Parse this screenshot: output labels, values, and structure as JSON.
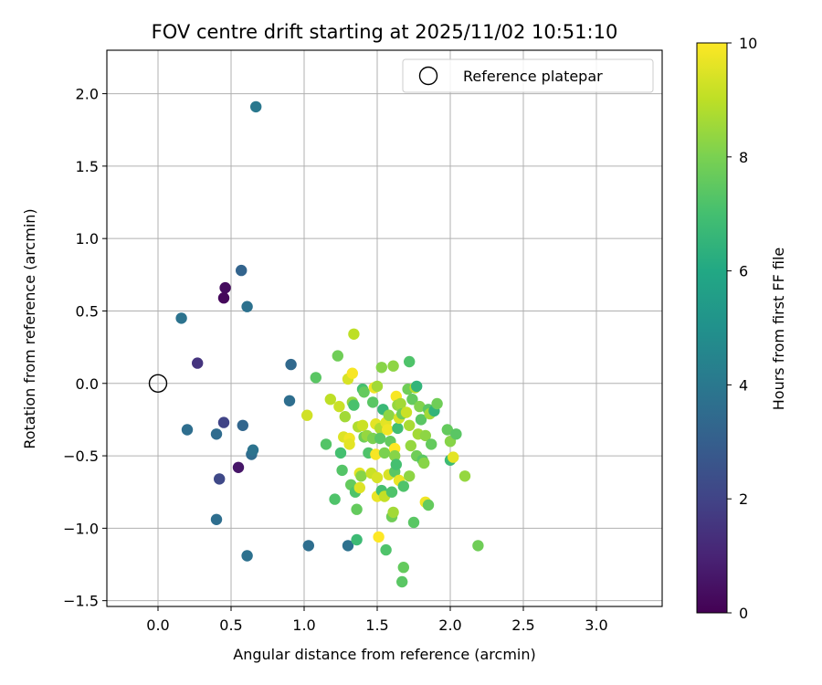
{
  "chart_data": {
    "type": "scatter",
    "title": "FOV centre drift starting at 2025/11/02 10:51:10",
    "xlabel": "Angular distance from reference (arcmin)",
    "ylabel": "Rotation from reference (arcmin)",
    "xlim": [
      -0.35,
      3.45
    ],
    "ylim": [
      -1.54,
      2.3
    ],
    "xticks": [
      0.0,
      0.5,
      1.0,
      1.5,
      2.0,
      2.5,
      3.0
    ],
    "xtick_labels": [
      "0.0",
      "0.5",
      "1.0",
      "1.5",
      "2.0",
      "2.5",
      "3.0"
    ],
    "yticks": [
      -1.5,
      -1.0,
      -0.5,
      0.0,
      0.5,
      1.0,
      1.5,
      2.0
    ],
    "ytick_labels": [
      "−1.5",
      "−1.0",
      "−0.5",
      "0.0",
      "0.5",
      "1.0",
      "1.5",
      "2.0"
    ],
    "grid": true,
    "legend": {
      "position": "top-right",
      "entries": [
        "Reference platepar"
      ]
    },
    "reference_point": {
      "x": 0.0,
      "y": 0.0
    },
    "colorbar": {
      "label": "Hours from first FF file",
      "colormap": "viridis",
      "range": [
        0,
        10
      ],
      "ticks": [
        0,
        2,
        4,
        6,
        8,
        10
      ],
      "tick_labels": [
        "0",
        "2",
        "4",
        "6",
        "8",
        "10"
      ]
    },
    "series": [
      {
        "name": "FOV centre drift",
        "points": [
          {
            "x": 0.46,
            "y": 0.66,
            "h": 0.3
          },
          {
            "x": 0.45,
            "y": 0.59,
            "h": 0.2
          },
          {
            "x": 0.55,
            "y": -0.58,
            "h": 0.6
          },
          {
            "x": 0.27,
            "y": 0.14,
            "h": 1.5
          },
          {
            "x": 0.45,
            "y": -0.27,
            "h": 2.0
          },
          {
            "x": 0.42,
            "y": -0.66,
            "h": 2.2
          },
          {
            "x": 0.16,
            "y": 0.45,
            "h": 3.8
          },
          {
            "x": 0.4,
            "y": -0.35,
            "h": 3.5
          },
          {
            "x": 0.2,
            "y": -0.32,
            "h": 3.6
          },
          {
            "x": 0.57,
            "y": 0.78,
            "h": 3.2
          },
          {
            "x": 0.61,
            "y": 0.53,
            "h": 3.7
          },
          {
            "x": 0.58,
            "y": -0.29,
            "h": 3.3
          },
          {
            "x": 0.64,
            "y": -0.49,
            "h": 3.5
          },
          {
            "x": 0.65,
            "y": -0.46,
            "h": 3.8
          },
          {
            "x": 0.4,
            "y": -0.94,
            "h": 3.6
          },
          {
            "x": 0.61,
            "y": -1.19,
            "h": 3.7
          },
          {
            "x": 0.67,
            "y": 1.91,
            "h": 4.0
          },
          {
            "x": 0.91,
            "y": 0.13,
            "h": 3.4
          },
          {
            "x": 0.9,
            "y": -0.12,
            "h": 3.6
          },
          {
            "x": 1.03,
            "y": -1.12,
            "h": 3.6
          },
          {
            "x": 1.3,
            "y": -1.12,
            "h": 3.7
          },
          {
            "x": 1.08,
            "y": 0.04,
            "h": 7.4
          },
          {
            "x": 1.02,
            "y": -0.22,
            "h": 9.3
          },
          {
            "x": 1.15,
            "y": -0.42,
            "h": 7.3
          },
          {
            "x": 1.18,
            "y": -0.11,
            "h": 9.0
          },
          {
            "x": 1.21,
            "y": -0.8,
            "h": 7.2
          },
          {
            "x": 1.23,
            "y": 0.19,
            "h": 7.8
          },
          {
            "x": 1.24,
            "y": -0.16,
            "h": 9.2
          },
          {
            "x": 1.25,
            "y": -0.48,
            "h": 7.0
          },
          {
            "x": 1.26,
            "y": -0.6,
            "h": 7.3
          },
          {
            "x": 1.27,
            "y": -0.37,
            "h": 9.5
          },
          {
            "x": 1.28,
            "y": -0.23,
            "h": 8.6
          },
          {
            "x": 1.3,
            "y": 0.03,
            "h": 9.4
          },
          {
            "x": 1.31,
            "y": -0.38,
            "h": 9.8
          },
          {
            "x": 1.31,
            "y": -0.42,
            "h": 9.6
          },
          {
            "x": 1.32,
            "y": -0.7,
            "h": 7.6
          },
          {
            "x": 1.33,
            "y": 0.07,
            "h": 9.9
          },
          {
            "x": 1.33,
            "y": -0.13,
            "h": 8.4
          },
          {
            "x": 1.34,
            "y": -0.15,
            "h": 7.1
          },
          {
            "x": 1.34,
            "y": 0.34,
            "h": 9.0
          },
          {
            "x": 1.35,
            "y": -0.75,
            "h": 7.2
          },
          {
            "x": 1.36,
            "y": -0.87,
            "h": 7.6
          },
          {
            "x": 1.36,
            "y": -1.08,
            "h": 6.8
          },
          {
            "x": 1.37,
            "y": -0.3,
            "h": 8.8
          },
          {
            "x": 1.38,
            "y": -0.62,
            "h": 9.6
          },
          {
            "x": 1.38,
            "y": -0.72,
            "h": 9.5
          },
          {
            "x": 1.39,
            "y": -0.64,
            "h": 8.2
          },
          {
            "x": 1.4,
            "y": -0.04,
            "h": 7.0
          },
          {
            "x": 1.4,
            "y": -0.29,
            "h": 9.2
          },
          {
            "x": 1.41,
            "y": -0.06,
            "h": 7.6
          },
          {
            "x": 1.41,
            "y": -0.37,
            "h": 7.8
          },
          {
            "x": 1.43,
            "y": -0.36,
            "h": 8.4
          },
          {
            "x": 1.44,
            "y": -0.48,
            "h": 7.2
          },
          {
            "x": 1.46,
            "y": -0.62,
            "h": 9.2
          },
          {
            "x": 1.47,
            "y": -0.13,
            "h": 7.4
          },
          {
            "x": 1.47,
            "y": -0.38,
            "h": 8.0
          },
          {
            "x": 1.48,
            "y": -0.03,
            "h": 9.8
          },
          {
            "x": 1.49,
            "y": -0.28,
            "h": 9.6
          },
          {
            "x": 1.49,
            "y": -0.49,
            "h": 9.9
          },
          {
            "x": 1.5,
            "y": -0.65,
            "h": 9.4
          },
          {
            "x": 1.5,
            "y": -0.78,
            "h": 9.7
          },
          {
            "x": 1.5,
            "y": -0.02,
            "h": 8.6
          },
          {
            "x": 1.51,
            "y": -1.06,
            "h": 10.0
          },
          {
            "x": 1.52,
            "y": -0.31,
            "h": 8.8
          },
          {
            "x": 1.52,
            "y": -0.38,
            "h": 7.4
          },
          {
            "x": 1.53,
            "y": 0.11,
            "h": 8.2
          },
          {
            "x": 1.53,
            "y": -0.74,
            "h": 7.0
          },
          {
            "x": 1.54,
            "y": -0.18,
            "h": 6.7
          },
          {
            "x": 1.55,
            "y": -0.48,
            "h": 8.0
          },
          {
            "x": 1.55,
            "y": -0.78,
            "h": 9.1
          },
          {
            "x": 1.56,
            "y": -1.15,
            "h": 7.2
          },
          {
            "x": 1.56,
            "y": -0.27,
            "h": 9.6
          },
          {
            "x": 1.57,
            "y": -0.32,
            "h": 9.8
          },
          {
            "x": 1.58,
            "y": -0.63,
            "h": 9.4
          },
          {
            "x": 1.58,
            "y": -0.22,
            "h": 8.3
          },
          {
            "x": 1.59,
            "y": -0.4,
            "h": 7.6
          },
          {
            "x": 1.6,
            "y": -0.75,
            "h": 7.2
          },
          {
            "x": 1.6,
            "y": -0.92,
            "h": 7.8
          },
          {
            "x": 1.61,
            "y": -0.89,
            "h": 8.6
          },
          {
            "x": 1.61,
            "y": 0.12,
            "h": 8.3
          },
          {
            "x": 1.62,
            "y": -0.45,
            "h": 10.0
          },
          {
            "x": 1.62,
            "y": -0.5,
            "h": 8.2
          },
          {
            "x": 1.62,
            "y": -0.61,
            "h": 7.4
          },
          {
            "x": 1.63,
            "y": -0.09,
            "h": 9.9
          },
          {
            "x": 1.63,
            "y": -0.56,
            "h": 7.0
          },
          {
            "x": 1.64,
            "y": -0.31,
            "h": 6.9
          },
          {
            "x": 1.64,
            "y": -0.15,
            "h": 8.4
          },
          {
            "x": 1.65,
            "y": -0.67,
            "h": 9.7
          },
          {
            "x": 1.65,
            "y": -0.24,
            "h": 9.4
          },
          {
            "x": 1.66,
            "y": -0.14,
            "h": 8.6
          },
          {
            "x": 1.67,
            "y": -0.21,
            "h": 7.8
          },
          {
            "x": 1.67,
            "y": -1.37,
            "h": 7.4
          },
          {
            "x": 1.68,
            "y": -0.71,
            "h": 7.2
          },
          {
            "x": 1.68,
            "y": -1.27,
            "h": 7.6
          },
          {
            "x": 1.7,
            "y": -0.2,
            "h": 9.2
          },
          {
            "x": 1.71,
            "y": -0.04,
            "h": 7.8
          },
          {
            "x": 1.72,
            "y": 0.15,
            "h": 7.2
          },
          {
            "x": 1.72,
            "y": -0.29,
            "h": 8.7
          },
          {
            "x": 1.72,
            "y": -0.64,
            "h": 8.3
          },
          {
            "x": 1.73,
            "y": -0.43,
            "h": 8.4
          },
          {
            "x": 1.74,
            "y": -0.11,
            "h": 7.6
          },
          {
            "x": 1.75,
            "y": -0.96,
            "h": 7.4
          },
          {
            "x": 1.76,
            "y": -0.03,
            "h": 8.8
          },
          {
            "x": 1.77,
            "y": -0.5,
            "h": 7.8
          },
          {
            "x": 1.77,
            "y": -0.02,
            "h": 6.5
          },
          {
            "x": 1.78,
            "y": -0.35,
            "h": 8.6
          },
          {
            "x": 1.79,
            "y": -0.16,
            "h": 8.1
          },
          {
            "x": 1.8,
            "y": -0.25,
            "h": 7.4
          },
          {
            "x": 1.81,
            "y": -0.53,
            "h": 7.4
          },
          {
            "x": 1.82,
            "y": -0.55,
            "h": 8.2
          },
          {
            "x": 1.83,
            "y": -0.36,
            "h": 8.3
          },
          {
            "x": 1.83,
            "y": -0.82,
            "h": 9.8
          },
          {
            "x": 1.85,
            "y": -0.84,
            "h": 7.6
          },
          {
            "x": 1.85,
            "y": -0.18,
            "h": 7.4
          },
          {
            "x": 1.86,
            "y": -0.21,
            "h": 8.6
          },
          {
            "x": 1.87,
            "y": -0.42,
            "h": 7.6
          },
          {
            "x": 1.89,
            "y": -0.19,
            "h": 6.5
          },
          {
            "x": 1.91,
            "y": -0.14,
            "h": 7.8
          },
          {
            "x": 1.98,
            "y": -0.32,
            "h": 7.6
          },
          {
            "x": 2.0,
            "y": -0.4,
            "h": 8.2
          },
          {
            "x": 2.0,
            "y": -0.53,
            "h": 6.8
          },
          {
            "x": 2.02,
            "y": -0.51,
            "h": 9.6
          },
          {
            "x": 2.04,
            "y": -0.35,
            "h": 7.4
          },
          {
            "x": 2.1,
            "y": -0.64,
            "h": 8.4
          },
          {
            "x": 2.19,
            "y": -1.12,
            "h": 7.8
          }
        ]
      }
    ]
  }
}
